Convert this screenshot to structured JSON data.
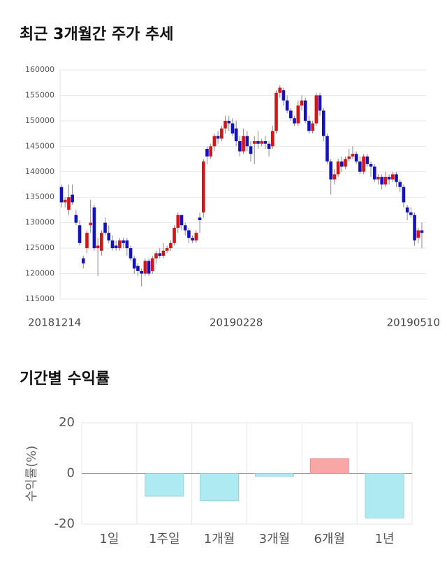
{
  "chart_data": [
    {
      "type": "candlestick",
      "title": "최근 3개월간 주가 추세",
      "categories": [
        "20181214",
        null,
        null,
        null,
        null,
        null,
        null,
        null,
        null,
        null,
        null,
        null,
        null,
        null,
        null,
        null,
        null,
        null,
        null,
        null,
        null,
        null,
        null,
        null,
        null,
        null,
        null,
        null,
        null,
        null,
        null,
        null,
        null,
        null,
        null,
        null,
        null,
        null,
        null,
        null,
        null,
        null,
        null,
        null,
        null,
        null,
        null,
        null,
        "20190228",
        null,
        null,
        null,
        null,
        null,
        null,
        null,
        null,
        null,
        null,
        null,
        null,
        null,
        null,
        null,
        null,
        null,
        null,
        null,
        null,
        null,
        null,
        null,
        null,
        null,
        null,
        null,
        null,
        null,
        null,
        null,
        null,
        null,
        null,
        null,
        null,
        null,
        null,
        null,
        null,
        null,
        null,
        null,
        null,
        null,
        null,
        null,
        null,
        null,
        null,
        "20190510"
      ],
      "open": [
        137000,
        134000,
        132500,
        135500,
        131500,
        129500,
        123000,
        125000,
        129500,
        133000,
        125000,
        124500,
        130000,
        128000,
        126500,
        125500,
        125000,
        126500,
        126500,
        125000,
        123000,
        121500,
        120500,
        120000,
        122500,
        120500,
        123000,
        124000,
        123500,
        124500,
        125000,
        126000,
        129000,
        131500,
        129500,
        128500,
        127000,
        126500,
        131000,
        132000,
        144500,
        143000,
        145000,
        147000,
        146500,
        148500,
        150000,
        149500,
        148500,
        146000,
        144000,
        147000,
        145000,
        145500,
        146000,
        145500,
        146000,
        145500,
        145000,
        148000,
        155500,
        156000,
        154000,
        152000,
        150500,
        149500,
        153000,
        154000,
        150000,
        148000,
        149500,
        155000,
        152000,
        147000,
        142000,
        138500,
        139500,
        142000,
        141000,
        142500,
        143000,
        143500,
        142000,
        140000,
        143000,
        141500,
        141000,
        138500,
        139000,
        137500,
        139000,
        138500,
        139500,
        138000,
        137000,
        133000,
        132000,
        131500,
        127000,
        128500
      ],
      "high": [
        137500,
        135000,
        137500,
        137500,
        132500,
        130500,
        123500,
        128500,
        134500,
        133500,
        127000,
        128500,
        131000,
        129500,
        127500,
        126500,
        127000,
        127000,
        127000,
        125500,
        123500,
        122000,
        121000,
        123000,
        123000,
        123500,
        124500,
        125000,
        126000,
        125500,
        126500,
        129500,
        132000,
        131500,
        130000,
        129000,
        127500,
        128500,
        132000,
        142500,
        145000,
        145500,
        147500,
        148000,
        149000,
        151000,
        151000,
        150500,
        150000,
        147000,
        148500,
        148000,
        146000,
        147000,
        148000,
        146500,
        147000,
        146000,
        149000,
        156000,
        157000,
        156500,
        155000,
        152500,
        151000,
        154000,
        155000,
        154500,
        151000,
        150000,
        155500,
        155500,
        152500,
        147500,
        142500,
        140500,
        142500,
        143000,
        143000,
        144500,
        145000,
        144000,
        143000,
        143500,
        143500,
        142000,
        141500,
        139500,
        139500,
        140000,
        139500,
        140000,
        140000,
        138500,
        137500,
        133500,
        133000,
        132000,
        129000,
        130000
      ],
      "low": [
        133000,
        133000,
        131500,
        133500,
        129500,
        125500,
        121000,
        124000,
        128000,
        124500,
        119500,
        123500,
        127500,
        126000,
        124500,
        124500,
        124500,
        125000,
        123500,
        122500,
        120000,
        119500,
        117500,
        119500,
        119500,
        120000,
        122000,
        123000,
        123000,
        124000,
        124500,
        125500,
        128000,
        128500,
        127500,
        126000,
        126000,
        126000,
        128000,
        131000,
        141500,
        142500,
        144000,
        145500,
        146000,
        147500,
        148000,
        147000,
        145000,
        143000,
        143500,
        144000,
        142000,
        141500,
        144500,
        145000,
        144500,
        143000,
        144500,
        147500,
        154500,
        153000,
        151500,
        150000,
        149000,
        149000,
        152000,
        149500,
        147500,
        147500,
        149000,
        151000,
        146000,
        141500,
        135500,
        137500,
        139000,
        140000,
        140500,
        142000,
        142500,
        141500,
        139500,
        139500,
        141000,
        139000,
        138000,
        137500,
        136500,
        137000,
        137500,
        138000,
        137000,
        136000,
        133000,
        130500,
        131000,
        125500,
        126000,
        125000
      ],
      "close": [
        134000,
        134500,
        135000,
        134000,
        130000,
        126000,
        122000,
        128000,
        130000,
        125000,
        125500,
        128000,
        128000,
        126500,
        125000,
        125000,
        126500,
        126000,
        125000,
        123000,
        121000,
        120500,
        120000,
        122500,
        120000,
        123000,
        124000,
        123500,
        124500,
        125000,
        126000,
        129000,
        131500,
        129500,
        128500,
        127000,
        126500,
        128000,
        130500,
        142000,
        143000,
        145000,
        147000,
        146500,
        148500,
        150000,
        149500,
        147500,
        146000,
        144000,
        147000,
        145000,
        143500,
        146000,
        145500,
        146000,
        145500,
        144500,
        148000,
        155500,
        156500,
        154000,
        152000,
        150500,
        149500,
        153000,
        154000,
        150000,
        148000,
        149500,
        155000,
        152000,
        147000,
        142000,
        138500,
        139500,
        142000,
        141000,
        142500,
        143000,
        143500,
        142000,
        140000,
        143000,
        141500,
        141000,
        138500,
        139000,
        137500,
        139000,
        138500,
        139500,
        138000,
        137000,
        134000,
        132000,
        131500,
        126500,
        128500,
        128000
      ],
      "up_color": "#dd1111",
      "down_color": "#1111cc",
      "ylim": [
        115000,
        160000
      ],
      "yticks": [
        115000,
        120000,
        125000,
        130000,
        135000,
        140000,
        145000,
        150000,
        155000,
        160000
      ],
      "grid": true
    },
    {
      "type": "bar",
      "title": "기간별 수익률",
      "y_label": "수익률(%)",
      "categories": [
        "1일",
        "1주일",
        "1개월",
        "3개월",
        "6개월",
        "1년"
      ],
      "values": [
        0,
        -9,
        -10.8,
        -1.2,
        5.8,
        -17.6
      ],
      "positive_color": "#f9a6a6",
      "negative_color": "#aeeaf2",
      "ylim": [
        -20,
        20
      ],
      "yticks": [
        -20,
        0,
        20
      ],
      "grid": true
    }
  ]
}
